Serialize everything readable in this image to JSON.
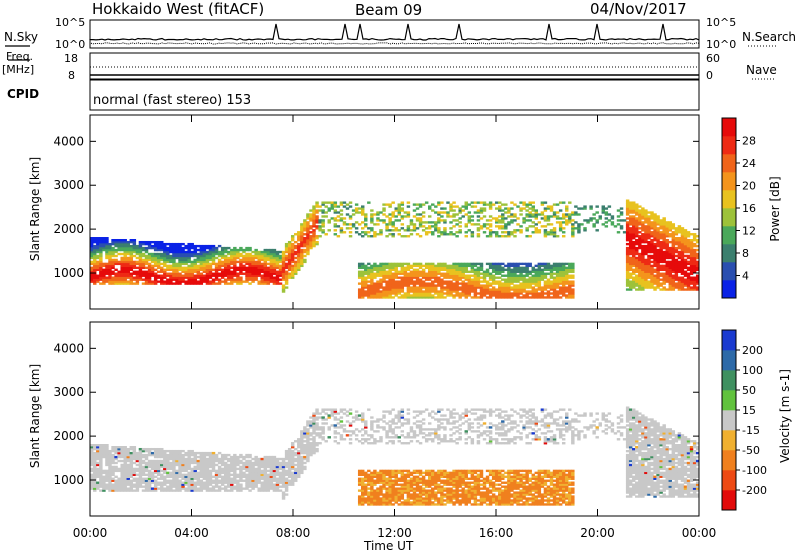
{
  "header": {
    "title": "Hokkaido West (fitACF)",
    "beam": "Beam 09",
    "date": "04/Nov/2017"
  },
  "top_panels": {
    "nsky_label": "N.Sky",
    "nsearch_label": "N.Search",
    "freq_label": "Freq.",
    "freq_unit": "[MHz]",
    "nave_label": "Nave",
    "cpid_label": "CPID",
    "cpid_text": "normal (fast stereo) 153",
    "noise_ticks": [
      "10^5",
      "10^0"
    ],
    "freq_ticks": [
      "18",
      "8"
    ],
    "nave_ticks": [
      "60",
      "0"
    ]
  },
  "chart_data": [
    {
      "type": "heatmap",
      "quantity": "Power",
      "ylabel": "Slant Range [km]",
      "colorbar_label": "Power [dB]",
      "ylim": [
        180,
        4600
      ],
      "yticks": [
        1000,
        2000,
        3000,
        4000
      ],
      "colorbar_ticks": [
        4,
        8,
        12,
        16,
        20,
        24,
        28
      ],
      "colorbar_colors": [
        "#0a22e6",
        "#2a4fb0",
        "#3b7f6e",
        "#4aa85a",
        "#9dc23a",
        "#e8c21f",
        "#f4941c",
        "#f0641a",
        "#ee2a14",
        "#e60a0a"
      ]
    },
    {
      "type": "heatmap",
      "quantity": "Velocity",
      "ylabel": "Slant Range [km]",
      "colorbar_label": "Velocity [m s-1]",
      "ylim": [
        180,
        4600
      ],
      "yticks": [
        1000,
        2000,
        3000,
        4000
      ],
      "colorbar_ticks": [
        "200",
        "100",
        "50",
        "15",
        "-15",
        "-50",
        "-100",
        "-200"
      ],
      "colorbar_colors": [
        "#1a3ad0",
        "#2d6aa8",
        "#3f9060",
        "#61c23d",
        "#c8c8c8",
        "#f0b030",
        "#f0801e",
        "#ee4a14",
        "#e20a0a"
      ],
      "xlabel": "Time UT",
      "xticks": [
        "00:00",
        "04:00",
        "08:00",
        "12:00",
        "16:00",
        "20:00",
        "00:00"
      ]
    }
  ]
}
